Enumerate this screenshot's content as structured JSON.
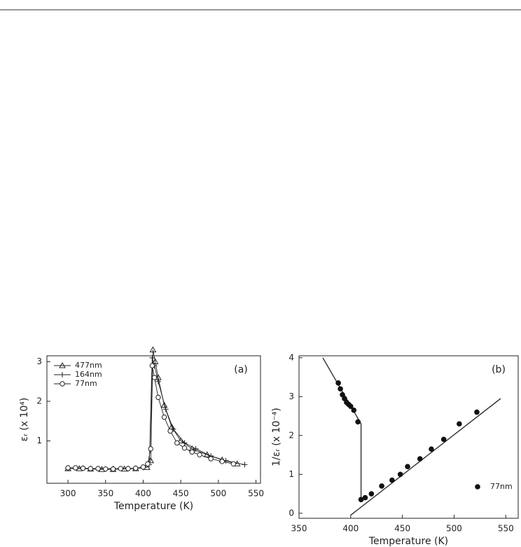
{
  "chart_data": [
    {
      "type": "line",
      "annotation": "(a)",
      "xlabel": "Temperature (K)",
      "ylabel": "εᵣ (x 10⁴)",
      "xlim": [
        272,
        556
      ],
      "xticks": [
        300,
        350,
        400,
        450,
        500,
        550
      ],
      "ylim": [
        -0.07,
        3.15
      ],
      "yticks": [
        1,
        2,
        3
      ],
      "legend": "upper left",
      "series": [
        {
          "name": "477nm",
          "color": "#222222",
          "marker": "triangle",
          "x": [
            300,
            315,
            330,
            345,
            360,
            375,
            390,
            405,
            410,
            413,
            416,
            420,
            428,
            438,
            450,
            465,
            485,
            505,
            525
          ],
          "values": [
            0.3,
            0.3,
            0.29,
            0.28,
            0.28,
            0.29,
            0.3,
            0.33,
            0.5,
            3.3,
            3.0,
            2.6,
            1.9,
            1.35,
            1.0,
            0.8,
            0.65,
            0.52,
            0.42
          ]
        },
        {
          "name": "164nm",
          "color": "#222222",
          "marker": "plus",
          "x": [
            300,
            320,
            340,
            360,
            380,
            400,
            408,
            412,
            415,
            420,
            430,
            440,
            455,
            470,
            490,
            510,
            535
          ],
          "values": [
            0.32,
            0.31,
            0.3,
            0.3,
            0.3,
            0.33,
            0.4,
            3.1,
            2.9,
            2.5,
            1.8,
            1.3,
            0.95,
            0.8,
            0.62,
            0.5,
            0.4
          ]
        },
        {
          "name": "77nm",
          "color": "#222222",
          "marker": "circle",
          "x": [
            300,
            310,
            320,
            330,
            340,
            350,
            360,
            370,
            380,
            390,
            400,
            406,
            410,
            412,
            415,
            420,
            428,
            436,
            445,
            455,
            465,
            475,
            490,
            505,
            520
          ],
          "values": [
            0.32,
            0.32,
            0.31,
            0.3,
            0.3,
            0.29,
            0.29,
            0.3,
            0.3,
            0.31,
            0.34,
            0.42,
            0.8,
            2.9,
            2.6,
            2.1,
            1.6,
            1.25,
            0.95,
            0.82,
            0.72,
            0.65,
            0.55,
            0.48,
            0.42
          ]
        }
      ]
    },
    {
      "type": "scatter",
      "annotation": "(b)",
      "xlabel": "Temperature (K)",
      "ylabel": "1/εᵣ (x 10⁻⁴)",
      "xlim": [
        350,
        562
      ],
      "xticks": [
        350,
        400,
        450,
        500,
        550
      ],
      "ylim": [
        -0.13,
        4.05
      ],
      "yticks": [
        0,
        1,
        2,
        3,
        4
      ],
      "legend": "lower right",
      "series": [
        {
          "name": "77nm",
          "color": "#111111",
          "marker": "dot",
          "x": [
            388,
            390,
            392,
            394,
            396,
            398,
            400,
            403,
            407,
            410,
            414,
            420,
            430,
            440,
            448,
            455,
            467,
            478,
            490,
            505,
            522
          ],
          "values": [
            3.35,
            3.2,
            3.05,
            2.95,
            2.85,
            2.8,
            2.75,
            2.65,
            2.35,
            0.35,
            0.4,
            0.5,
            0.7,
            0.85,
            1.0,
            1.2,
            1.4,
            1.65,
            1.9,
            2.3,
            2.6
          ]
        }
      ],
      "fit_lines": [
        {
          "x": [
            373,
            410,
            410
          ],
          "y": [
            4.0,
            2.3,
            0.35
          ]
        },
        {
          "x": [
            400,
            545
          ],
          "y": [
            -0.05,
            2.95
          ]
        }
      ]
    }
  ]
}
